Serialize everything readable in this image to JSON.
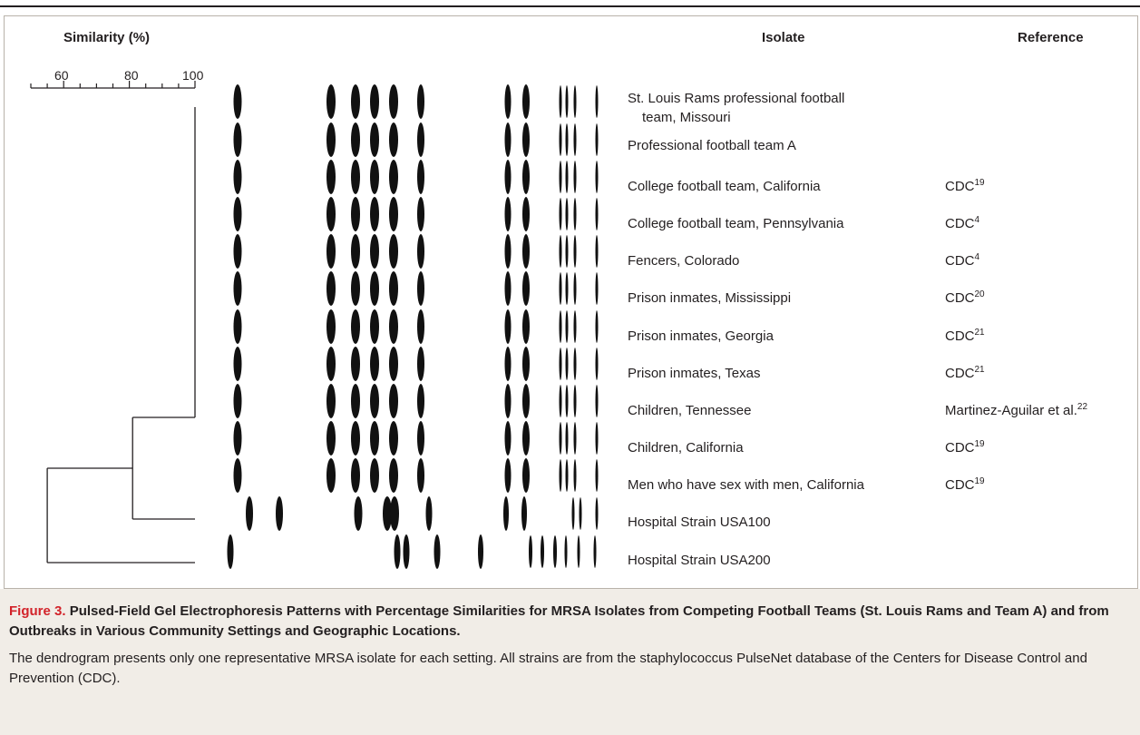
{
  "headers": {
    "similarity": "Similarity (%)",
    "isolate": "Isolate",
    "reference": "Reference"
  },
  "scale": {
    "ticks": [
      "60",
      "80",
      "100"
    ],
    "min": 50,
    "max": 100
  },
  "rows": [
    {
      "isolate_line1": "St. Louis Rams professional football",
      "isolate_line2": "team, Missouri",
      "ref_text": "",
      "ref_sup": ""
    },
    {
      "isolate_line1": "Professional football team A",
      "isolate_line2": "",
      "ref_text": "",
      "ref_sup": ""
    },
    {
      "isolate_line1": "College football team, California",
      "isolate_line2": "",
      "ref_text": "CDC",
      "ref_sup": "19"
    },
    {
      "isolate_line1": "College football team, Pennsylvania",
      "isolate_line2": "",
      "ref_text": "CDC",
      "ref_sup": "4"
    },
    {
      "isolate_line1": "Fencers, Colorado",
      "isolate_line2": "",
      "ref_text": "CDC",
      "ref_sup": "4"
    },
    {
      "isolate_line1": "Prison inmates, Mississippi",
      "isolate_line2": "",
      "ref_text": "CDC",
      "ref_sup": "20"
    },
    {
      "isolate_line1": "Prison inmates, Georgia",
      "isolate_line2": "",
      "ref_text": "CDC",
      "ref_sup": "21"
    },
    {
      "isolate_line1": "Prison inmates, Texas",
      "isolate_line2": "",
      "ref_text": "CDC",
      "ref_sup": "21"
    },
    {
      "isolate_line1": "Children, Tennessee",
      "isolate_line2": "",
      "ref_text": "Martinez-Aguilar et al.",
      "ref_sup": "22"
    },
    {
      "isolate_line1": "Children, California",
      "isolate_line2": "",
      "ref_text": "CDC",
      "ref_sup": "19"
    },
    {
      "isolate_line1": "Men who have sex with men, California",
      "isolate_line2": "",
      "ref_text": "CDC",
      "ref_sup": "19"
    },
    {
      "isolate_line1": "Hospital Strain USA100",
      "isolate_line2": "",
      "ref_text": "",
      "ref_sup": ""
    },
    {
      "isolate_line1": "Hospital Strain USA200",
      "isolate_line2": "",
      "ref_text": "",
      "ref_sup": ""
    }
  ],
  "dendrogram": {
    "main_cluster_similarity": 100,
    "usa100_join_similarity": 81,
    "usa200_join_similarity": 55
  },
  "caption": {
    "figure_number": "Figure 3.",
    "title": "Pulsed-Field Gel Electrophoresis Patterns with Percentage Similarities for MRSA Isolates from Competing Football Teams (St. Louis Rams and Team A) and from Outbreaks in Various Community Settings and Geographic Locations.",
    "body": "The dendrogram presents only one representative MRSA isolate for each setting. All strains are from the staphylococcus PulseNet database of the Centers for Disease Control and Prevention (CDC)."
  },
  "colors": {
    "figure_number": "#d2232a",
    "caption_background": "#f1ede7",
    "ink": "#231f20"
  }
}
